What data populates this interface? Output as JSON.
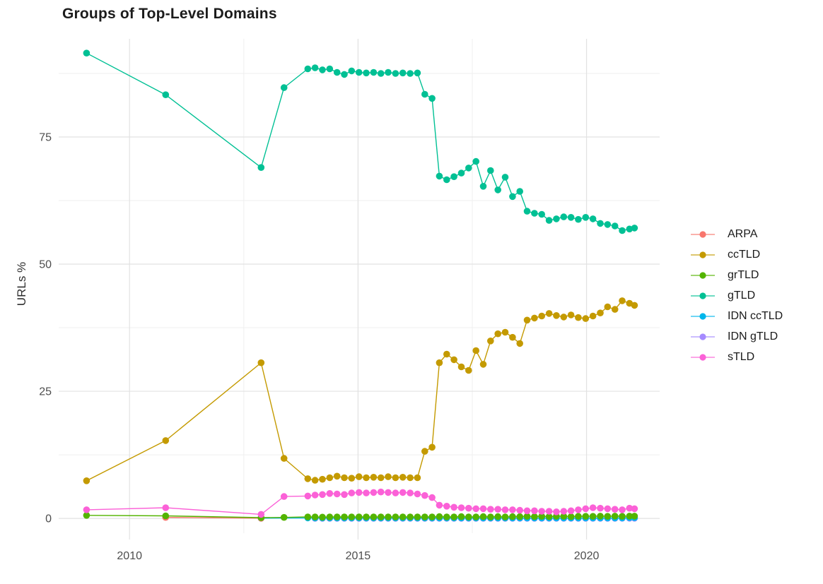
{
  "chart_data": {
    "type": "line",
    "title": "Groups of Top-Level Domains",
    "xlabel": "",
    "ylabel": "URLs %",
    "grid": "on",
    "legend_position": "right",
    "x_domain": [
      2008.45,
      2021.6
    ],
    "y_domain": [
      -2.9,
      94.3
    ],
    "x_ticks": [
      2010,
      2015,
      2020
    ],
    "x_tick_labels": [
      "2010",
      "2015",
      "2020"
    ],
    "x_minor_ticks": [
      2012.5,
      2017.5
    ],
    "y_ticks": [
      0,
      25,
      50,
      75
    ],
    "y_tick_labels": [
      "0",
      "25",
      "50",
      "75"
    ],
    "y_minor_ticks": [
      12.5,
      37.5,
      62.5,
      87.5
    ],
    "x_dense": [
      2013.9,
      2014.06,
      2014.22,
      2014.38,
      2014.54,
      2014.7,
      2014.86,
      2015.02,
      2015.18,
      2015.34,
      2015.5,
      2015.66,
      2015.82,
      2015.98,
      2016.14,
      2016.3,
      2016.46,
      2016.62,
      2016.78,
      2016.94,
      2017.1,
      2017.26,
      2017.42,
      2017.58,
      2017.74,
      2017.9,
      2018.06,
      2018.22,
      2018.38,
      2018.54,
      2018.7,
      2018.86,
      2019.02,
      2019.18,
      2019.34,
      2019.5,
      2019.66,
      2019.82,
      2019.98,
      2020.14,
      2020.3,
      2020.46,
      2020.62,
      2020.78,
      2020.94,
      2021.05
    ],
    "series": [
      {
        "name": "ARPA",
        "color": "#F8766D",
        "early": [
          [
            2010.79,
            0.2
          ],
          [
            2012.88,
            0.05
          ]
        ],
        "dense": []
      },
      {
        "name": "ccTLD",
        "color": "#C49A00",
        "early": [
          [
            2009.06,
            7.4
          ],
          [
            2010.79,
            15.3
          ],
          [
            2012.88,
            30.6
          ],
          [
            2013.38,
            11.8
          ]
        ],
        "dense": [
          7.8,
          7.5,
          7.7,
          8.0,
          8.3,
          8.0,
          7.9,
          8.2,
          8.0,
          8.1,
          8.0,
          8.2,
          8.0,
          8.1,
          8.0,
          8.0,
          13.2,
          14.0,
          30.6,
          32.3,
          31.2,
          29.8,
          29.1,
          33.0,
          30.3,
          34.9,
          36.3,
          36.6,
          35.6,
          34.4,
          39.0,
          39.4,
          39.8,
          40.3,
          39.9,
          39.6,
          40.0,
          39.5,
          39.3,
          39.8,
          40.4,
          41.6,
          41.1,
          42.8,
          42.3,
          41.9
        ]
      },
      {
        "name": "grTLD",
        "color": "#53B400",
        "early": [
          [
            2009.06,
            0.6
          ],
          [
            2010.79,
            0.5
          ],
          [
            2012.88,
            0.15
          ],
          [
            2013.38,
            0.2
          ]
        ],
        "dense": [
          0.3,
          0.3,
          0.25,
          0.3,
          0.3,
          0.3,
          0.3,
          0.3,
          0.3,
          0.3,
          0.3,
          0.3,
          0.3,
          0.3,
          0.3,
          0.3,
          0.3,
          0.3,
          0.35,
          0.3,
          0.3,
          0.35,
          0.3,
          0.3,
          0.35,
          0.3,
          0.35,
          0.3,
          0.35,
          0.35,
          0.4,
          0.35,
          0.4,
          0.35,
          0.4,
          0.4,
          0.35,
          0.4,
          0.4,
          0.4,
          0.45,
          0.4,
          0.45,
          0.4,
          0.45,
          0.45
        ]
      },
      {
        "name": "gTLD",
        "color": "#00C094",
        "early": [
          [
            2009.06,
            91.5
          ],
          [
            2010.79,
            83.3
          ],
          [
            2012.88,
            69.0
          ],
          [
            2013.38,
            84.7
          ]
        ],
        "dense": [
          88.4,
          88.6,
          88.2,
          88.4,
          87.7,
          87.3,
          88.0,
          87.7,
          87.6,
          87.7,
          87.5,
          87.7,
          87.5,
          87.6,
          87.5,
          87.6,
          83.4,
          82.6,
          67.3,
          66.6,
          67.2,
          67.9,
          68.9,
          70.2,
          65.3,
          68.4,
          64.6,
          67.1,
          63.3,
          64.3,
          60.4,
          60.0,
          59.8,
          58.6,
          58.9,
          59.3,
          59.2,
          58.8,
          59.2,
          58.9,
          58.0,
          57.8,
          57.5,
          56.6,
          56.9,
          57.1
        ]
      },
      {
        "name": "IDN ccTLD",
        "color": "#00B6EB",
        "early": [
          [
            2012.88,
            0.05
          ]
        ],
        "dense": [
          0.1,
          0.1,
          0.1,
          0.1,
          0.1,
          0.1,
          0.1,
          0.1,
          0.1,
          0.1,
          0.1,
          0.1,
          0.1,
          0.1,
          0.1,
          0.1,
          0.1,
          0.1,
          0.1,
          0.1,
          0.1,
          0.1,
          0.1,
          0.1,
          0.1,
          0.1,
          0.1,
          0.1,
          0.1,
          0.1,
          0.1,
          0.1,
          0.1,
          0.1,
          0.1,
          0.1,
          0.1,
          0.1,
          0.1,
          0.1,
          0.1,
          0.1,
          0.1,
          0.1,
          0.15,
          0.15
        ]
      },
      {
        "name": "IDN gTLD",
        "color": "#A58AFF",
        "early": [],
        "dense": [
          null,
          0.02,
          0.02,
          0.02,
          0.02,
          0.02,
          0.02,
          0.02,
          0.02,
          0.02,
          0.02,
          0.02,
          0.02,
          0.02,
          0.02,
          0.02,
          0.02,
          0.02,
          0.02,
          0.02,
          0.02,
          0.02,
          0.02,
          0.02,
          0.02,
          0.02,
          0.02,
          0.02,
          0.02,
          0.02,
          0.02,
          0.02,
          0.02,
          0.02,
          0.02,
          0.02,
          0.02,
          0.02,
          0.02,
          0.02,
          0.02,
          0.02,
          0.02,
          0.05,
          0.05,
          0.05
        ]
      },
      {
        "name": "sTLD",
        "color": "#FB61D7",
        "early": [
          [
            2009.06,
            1.7
          ],
          [
            2010.79,
            2.1
          ],
          [
            2012.88,
            0.8
          ],
          [
            2013.38,
            4.3
          ]
        ],
        "dense": [
          4.4,
          4.6,
          4.7,
          4.9,
          4.8,
          4.7,
          5.0,
          5.1,
          5.0,
          5.1,
          5.2,
          5.1,
          5.0,
          5.1,
          5.0,
          4.8,
          4.5,
          4.1,
          2.6,
          2.4,
          2.2,
          2.1,
          2.0,
          1.9,
          1.9,
          1.8,
          1.8,
          1.7,
          1.7,
          1.6,
          1.5,
          1.5,
          1.4,
          1.4,
          1.3,
          1.4,
          1.5,
          1.7,
          1.9,
          2.1,
          2.0,
          1.9,
          1.8,
          1.7,
          2.0,
          1.9
        ]
      }
    ],
    "style": {
      "major_grid_color": "#E2E2E2",
      "minor_grid_color": "#EFEFEF",
      "tick_label_color": "#4d4d4d",
      "background": "#ffffff"
    }
  }
}
